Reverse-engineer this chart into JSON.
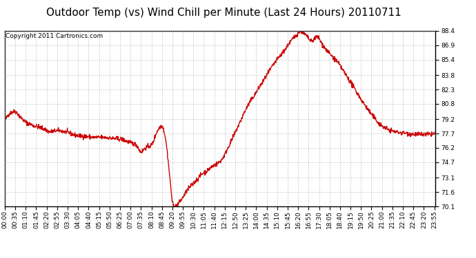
{
  "title": "Outdoor Temp (vs) Wind Chill per Minute (Last 24 Hours) 20110711",
  "copyright": "Copyright 2011 Cartronics.com",
  "line_color": "#cc0000",
  "background_color": "#ffffff",
  "grid_color": "#aaaaaa",
  "ylim": [
    70.1,
    88.4
  ],
  "yticks": [
    70.1,
    71.6,
    73.1,
    74.7,
    76.2,
    77.7,
    79.2,
    80.8,
    82.3,
    83.8,
    85.4,
    86.9,
    88.4
  ],
  "xtick_labels": [
    "00:00",
    "00:35",
    "01:10",
    "01:45",
    "02:20",
    "02:55",
    "03:30",
    "04:05",
    "04:40",
    "05:15",
    "05:50",
    "06:25",
    "07:00",
    "07:35",
    "08:10",
    "08:45",
    "09:20",
    "09:55",
    "10:30",
    "11:05",
    "11:40",
    "12:15",
    "12:50",
    "13:25",
    "14:00",
    "14:35",
    "15:10",
    "15:45",
    "16:20",
    "16:55",
    "17:30",
    "18:05",
    "18:40",
    "19:15",
    "19:50",
    "20:25",
    "21:00",
    "21:35",
    "22:10",
    "22:45",
    "23:20",
    "23:55"
  ],
  "title_fontsize": 11,
  "tick_fontsize": 6.5,
  "copyright_fontsize": 6.5,
  "line_width": 1.0
}
